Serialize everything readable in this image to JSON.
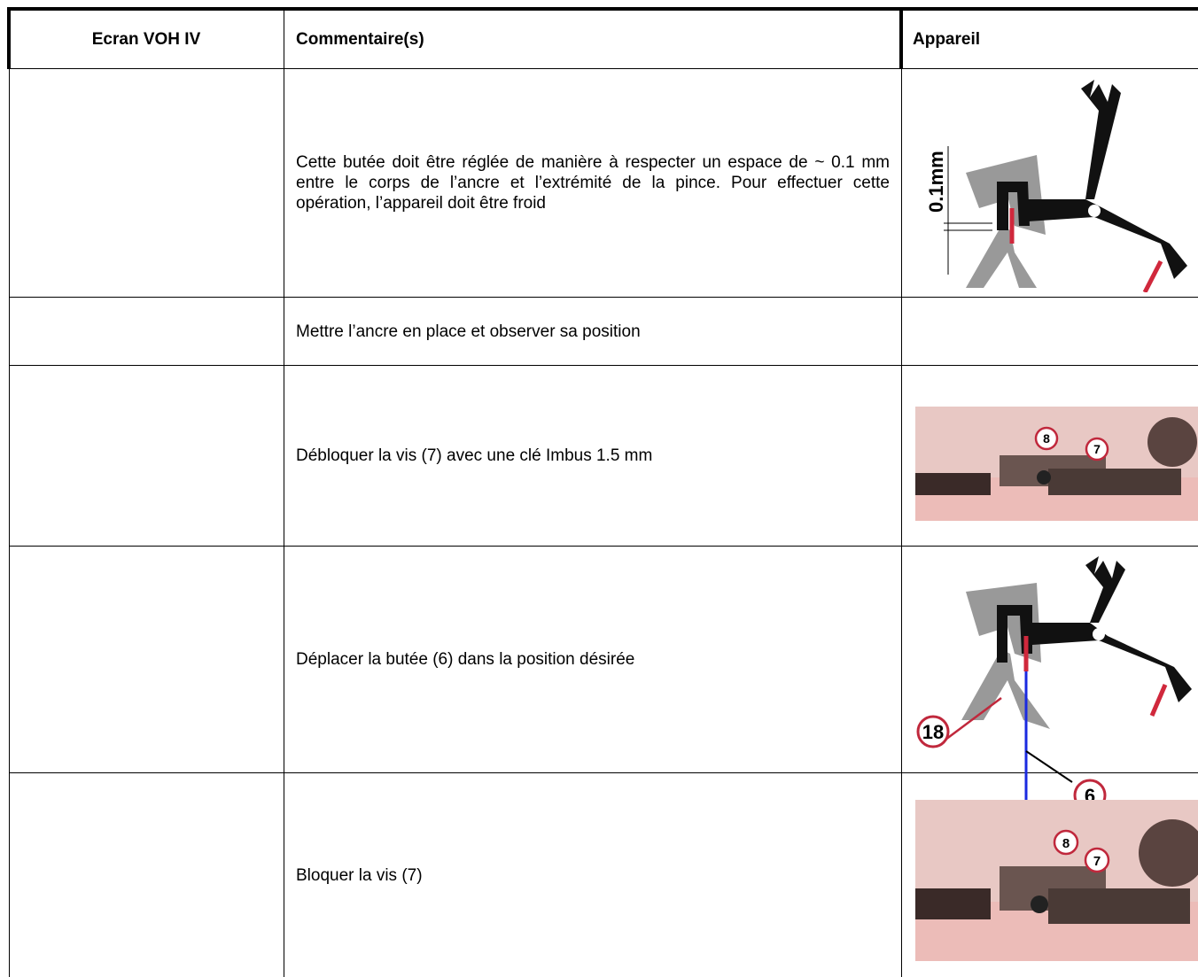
{
  "table": {
    "header": [
      "Ecran VOH IV",
      "Commentaire(s)",
      "Appareil"
    ],
    "rows": [
      {
        "comment": "Cette butée doit être réglée de manière à respecter un espace de ~ 0.1 mm entre le corps de l’ancre et l’extrémité de la pince. Pour effectuer cette opération, l’appareil doit être froid",
        "figure_labels": [
          "0.1mm"
        ]
      },
      {
        "comment": "Mettre l’ancre en place et observer sa position"
      },
      {
        "comment": "Débloquer la vis (7) avec une clé Imbus 1.5 mm",
        "figure_labels": [
          "8",
          "7"
        ]
      },
      {
        "comment": "Déplacer la butée (6) dans la position désirée",
        "figure_labels": [
          "18",
          "6"
        ]
      },
      {
        "comment": "Bloquer la vis (7)",
        "figure_labels": [
          "8",
          "7"
        ]
      }
    ]
  }
}
